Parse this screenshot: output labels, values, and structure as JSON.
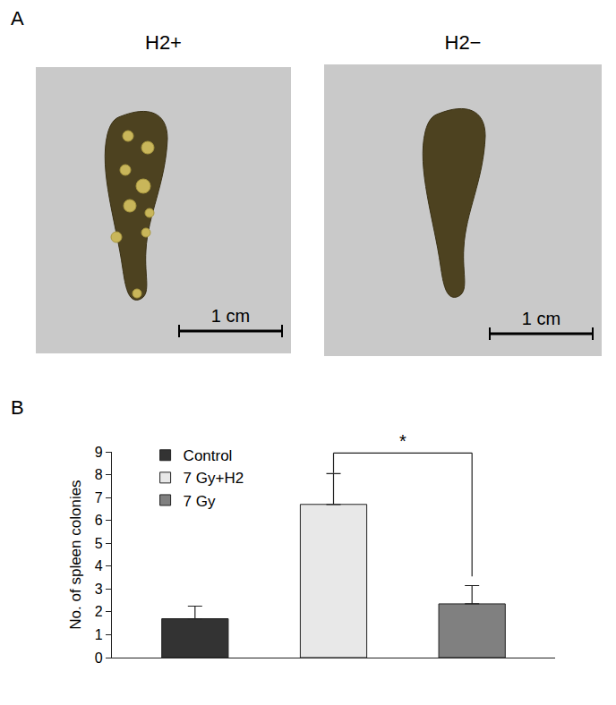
{
  "panel_labels": [
    "A",
    "B"
  ],
  "images": [
    {
      "label": "H2+",
      "scale_bar": "1 cm"
    },
    {
      "label": "H2−",
      "scale_bar": "1 cm"
    }
  ],
  "chart_data": {
    "type": "bar",
    "y_label": "No. of spleen colonies",
    "categories": [
      null,
      null,
      null
    ],
    "series": [
      {
        "name": "Control",
        "color": "#333333",
        "values": [
          1.7,
          null,
          null
        ],
        "errors": [
          0.55,
          null,
          null
        ]
      },
      {
        "name": "7 Gy+H2",
        "color": "#e8e8e8",
        "values": [
          null,
          6.7,
          null
        ],
        "errors": [
          null,
          1.35,
          null
        ]
      },
      {
        "name": "7 Gy",
        "color": "#808080",
        "values": [
          null,
          null,
          2.35
        ],
        "errors": [
          null,
          null,
          0.8
        ]
      }
    ],
    "ylim": [
      0,
      9
    ],
    "yticks": [
      0,
      1,
      2,
      3,
      4,
      5,
      6,
      7,
      8,
      9
    ],
    "grid": false,
    "legend": "upper left",
    "tick_labels": "y",
    "annotations": [
      {
        "text": "*",
        "between": [
          1,
          2
        ]
      }
    ]
  }
}
